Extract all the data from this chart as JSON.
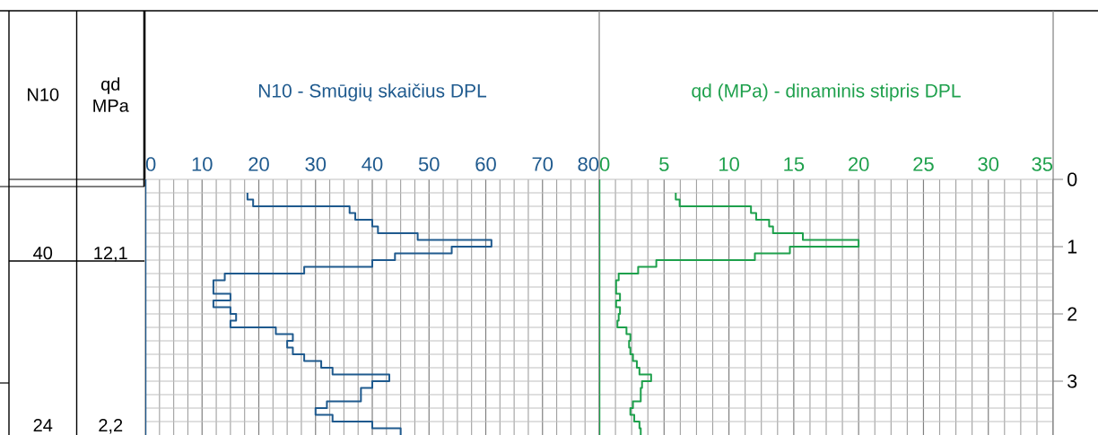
{
  "chart_data": [
    {
      "type": "other",
      "categories": [
        "N10",
        "qd MPa"
      ],
      "annotations": [
        "40",
        "12,1",
        "24",
        "2,2"
      ]
    },
    {
      "type": "line",
      "title": "N10 - Smūgių skaičius DPL",
      "xlim": [
        0,
        80
      ],
      "xticks": [
        0,
        {
          "value": 2.5,
          "label": null
        },
        {
          "value": 5,
          "label": null
        },
        {
          "value": 7.5,
          "label": null
        },
        10,
        {
          "value": 12.5,
          "label": null
        },
        {
          "value": 15,
          "label": null
        },
        {
          "value": 17.5,
          "label": null
        },
        20,
        {
          "value": 22.5,
          "label": null
        },
        {
          "value": 25,
          "label": null
        },
        {
          "value": 27.5,
          "label": null
        },
        30,
        {
          "value": 32.5,
          "label": null
        },
        {
          "value": 35,
          "label": null
        },
        {
          "value": 37.5,
          "label": null
        },
        40,
        {
          "value": 42.5,
          "label": null
        },
        {
          "value": 45,
          "label": null
        },
        {
          "value": 47.5,
          "label": null
        },
        50,
        {
          "value": 52.5,
          "label": null
        },
        {
          "value": 55,
          "label": null
        },
        {
          "value": 57.5,
          "label": null
        },
        60,
        {
          "value": 62.5,
          "label": null
        },
        {
          "value": 65,
          "label": null
        },
        {
          "value": 67.5,
          "label": null
        },
        70,
        {
          "value": 72.5,
          "label": null
        },
        {
          "value": 75,
          "label": null
        },
        {
          "value": 77.5,
          "label": null
        },
        80
      ],
      "ylim": [
        3.8,
        0
      ],
      "yticks": [
        0,
        {
          "value": 0.2,
          "label": null
        },
        {
          "value": 0.4,
          "label": null
        },
        {
          "value": 0.6,
          "label": null
        },
        {
          "value": 0.8,
          "label": null
        },
        1,
        {
          "value": 1.2,
          "label": null
        },
        {
          "value": 1.4,
          "label": null
        },
        {
          "value": 1.6,
          "label": null
        },
        {
          "value": 1.8,
          "label": null
        },
        2,
        {
          "value": 2.2,
          "label": null
        },
        {
          "value": 2.4,
          "label": null
        },
        {
          "value": 2.6,
          "label": null
        },
        {
          "value": 2.8,
          "label": null
        },
        3,
        {
          "value": 3.2,
          "label": null
        },
        {
          "value": 3.4,
          "label": null
        },
        {
          "value": 3.6,
          "label": null
        }
      ],
      "tick_labels": "x",
      "grid": true,
      "series": [
        {
          "color": "#1f5a8e",
          "x": [
            18,
            18,
            19,
            19,
            36,
            36,
            37,
            37,
            40,
            40,
            41,
            41,
            48,
            48,
            61,
            61,
            54,
            54,
            44,
            44,
            40,
            40,
            28,
            28,
            14,
            14,
            12,
            12,
            15,
            15,
            12,
            12,
            15,
            15,
            16,
            16,
            15,
            15,
            23,
            23,
            26,
            26,
            25,
            25,
            26,
            26,
            28,
            28,
            31,
            31,
            33,
            33,
            43,
            43,
            40,
            40,
            38,
            38,
            32,
            32,
            30,
            30,
            33,
            33,
            40,
            40,
            45,
            45
          ],
          "values": [
            0.2,
            0.3,
            0.3,
            0.4,
            0.4,
            0.5,
            0.5,
            0.6,
            0.6,
            0.7,
            0.7,
            0.8,
            0.8,
            0.9,
            0.9,
            1.0,
            1.0,
            1.1,
            1.1,
            1.2,
            1.2,
            1.3,
            1.3,
            1.4,
            1.4,
            1.5,
            1.5,
            1.7,
            1.7,
            1.8,
            1.8,
            1.9,
            1.9,
            2.0,
            2.0,
            2.1,
            2.1,
            2.2,
            2.2,
            2.3,
            2.3,
            2.4,
            2.4,
            2.5,
            2.5,
            2.6,
            2.6,
            2.7,
            2.7,
            2.8,
            2.8,
            2.9,
            2.9,
            3.0,
            3.0,
            3.1,
            3.1,
            3.3,
            3.3,
            3.4,
            3.4,
            3.5,
            3.5,
            3.6,
            3.6,
            3.7,
            3.7,
            3.8
          ]
        }
      ]
    },
    {
      "type": "line",
      "title": "qd (MPa) - dinaminis stipris DPL",
      "xlim": [
        0,
        35
      ],
      "xticks": [
        0,
        {
          "value": 1.25,
          "label": null
        },
        {
          "value": 2.5,
          "label": null
        },
        {
          "value": 3.75,
          "label": null
        },
        5,
        {
          "value": 6.25,
          "label": null
        },
        {
          "value": 7.5,
          "label": null
        },
        {
          "value": 8.75,
          "label": null
        },
        10,
        {
          "value": 11.25,
          "label": null
        },
        {
          "value": 12.5,
          "label": null
        },
        {
          "value": 13.75,
          "label": null
        },
        15,
        {
          "value": 16.25,
          "label": null
        },
        {
          "value": 17.5,
          "label": null
        },
        {
          "value": 18.75,
          "label": null
        },
        20,
        {
          "value": 21.25,
          "label": null
        },
        {
          "value": 22.5,
          "label": null
        },
        {
          "value": 23.75,
          "label": null
        },
        25,
        {
          "value": 26.25,
          "label": null
        },
        {
          "value": 27.5,
          "label": null
        },
        {
          "value": 28.75,
          "label": null
        },
        30,
        {
          "value": 31.25,
          "label": null
        },
        {
          "value": 32.5,
          "label": null
        },
        {
          "value": 33.75,
          "label": null
        },
        35
      ],
      "ylim": [
        3.8,
        0
      ],
      "yticks": [
        0,
        {
          "value": 0.2,
          "label": null
        },
        {
          "value": 0.4,
          "label": null
        },
        {
          "value": 0.6,
          "label": null
        },
        {
          "value": 0.8,
          "label": null
        },
        1,
        {
          "value": 1.2,
          "label": null
        },
        {
          "value": 1.4,
          "label": null
        },
        {
          "value": 1.6,
          "label": null
        },
        {
          "value": 1.8,
          "label": null
        },
        2,
        {
          "value": 2.2,
          "label": null
        },
        {
          "value": 2.4,
          "label": null
        },
        {
          "value": 2.6,
          "label": null
        },
        {
          "value": 2.8,
          "label": null
        },
        3,
        {
          "value": 3.2,
          "label": null
        },
        {
          "value": 3.4,
          "label": null
        },
        {
          "value": 3.6,
          "label": null
        }
      ],
      "grid": true,
      "series": [
        {
          "color": "#1ea04c",
          "x": [
            5.9,
            5.9,
            6.2,
            6.2,
            11.7,
            11.7,
            12.1,
            12.1,
            13.1,
            13.1,
            13.4,
            13.4,
            15.7,
            15.7,
            20,
            20,
            14.7,
            14.7,
            12,
            12,
            4.4,
            4.4,
            3,
            3,
            1.5,
            1.5,
            1.3,
            1.3,
            1.6,
            1.6,
            1.3,
            1.3,
            1.6,
            1.6,
            1.5,
            1.5,
            1.4,
            1.4,
            2.1,
            2.1,
            2.4,
            2.4,
            2.3,
            2.3,
            2.4,
            2.4,
            2.6,
            2.6,
            2.9,
            2.9,
            3.1,
            3.1,
            4,
            4,
            3.3,
            3.3,
            3.2,
            3.2,
            2.6,
            2.6,
            2.4,
            2.4,
            2.7,
            2.7,
            3.1,
            3.1,
            3.2,
            3.2
          ],
          "values": [
            0.2,
            0.3,
            0.3,
            0.4,
            0.4,
            0.5,
            0.5,
            0.6,
            0.6,
            0.7,
            0.7,
            0.8,
            0.8,
            0.9,
            0.9,
            1.0,
            1.0,
            1.1,
            1.1,
            1.2,
            1.2,
            1.3,
            1.3,
            1.4,
            1.4,
            1.5,
            1.5,
            1.7,
            1.7,
            1.8,
            1.8,
            1.9,
            1.9,
            2.0,
            2.0,
            2.1,
            2.1,
            2.2,
            2.2,
            2.3,
            2.3,
            2.4,
            2.4,
            2.5,
            2.5,
            2.6,
            2.6,
            2.7,
            2.7,
            2.8,
            2.8,
            2.9,
            2.9,
            3.0,
            3.0,
            3.1,
            3.1,
            3.3,
            3.3,
            3.4,
            3.4,
            3.5,
            3.5,
            3.6,
            3.6,
            3.7,
            3.7,
            3.8
          ]
        }
      ]
    }
  ]
}
